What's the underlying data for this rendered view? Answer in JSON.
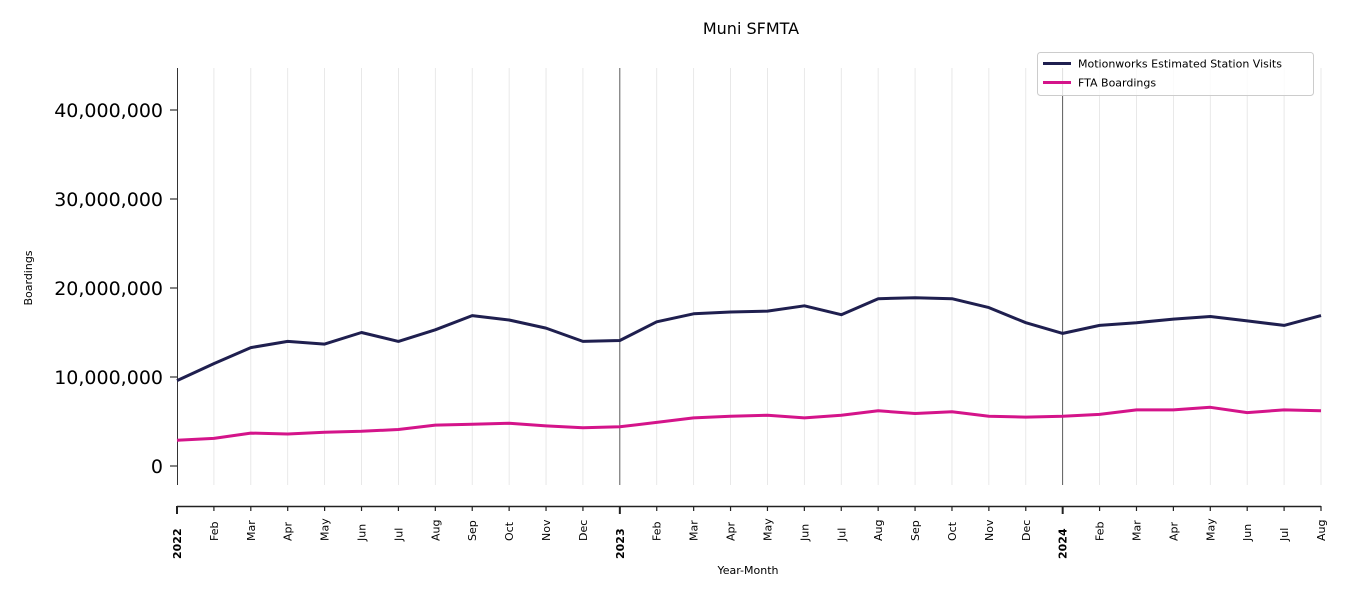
{
  "chart_data": {
    "type": "line",
    "title": "Muni SFMTA",
    "xlabel": "Year-Month",
    "ylabel": "Boardings",
    "ylim": [
      -2000000,
      44700000
    ],
    "yticks": [
      0,
      10000000,
      20000000,
      30000000,
      40000000
    ],
    "ytick_labels": [
      "0",
      "10,000,000",
      "20,000,000",
      "30,000,000",
      "40,000,000"
    ],
    "grid": "vertical",
    "legend_position": "top-right",
    "x": [
      "2022-01",
      "2022-02",
      "2022-03",
      "2022-04",
      "2022-05",
      "2022-06",
      "2022-07",
      "2022-08",
      "2022-09",
      "2022-10",
      "2022-11",
      "2022-12",
      "2023-01",
      "2023-02",
      "2023-03",
      "2023-04",
      "2023-05",
      "2023-06",
      "2023-07",
      "2023-08",
      "2023-09",
      "2023-10",
      "2023-11",
      "2023-12",
      "2024-01",
      "2024-02",
      "2024-03",
      "2024-04",
      "2024-05",
      "2024-06",
      "2024-07",
      "2024-08"
    ],
    "xtick_labels": [
      "2022",
      "Feb",
      "Mar",
      "Apr",
      "May",
      "Jun",
      "Jul",
      "Aug",
      "Sep",
      "Oct",
      "Nov",
      "Dec",
      "2023",
      "Feb",
      "Mar",
      "Apr",
      "May",
      "Jun",
      "Jul",
      "Aug",
      "Sep",
      "Oct",
      "Nov",
      "Dec",
      "2024",
      "Feb",
      "Mar",
      "Apr",
      "May",
      "Jun",
      "Jul",
      "Aug"
    ],
    "year_boundaries": [
      "2023-01",
      "2024-01"
    ],
    "series": [
      {
        "name": "Motionworks Estimated Station Visits",
        "color": "#1f1f4f",
        "values": [
          9600000,
          11500000,
          13300000,
          14000000,
          13700000,
          15000000,
          14000000,
          15300000,
          16900000,
          16400000,
          15500000,
          14000000,
          14100000,
          16200000,
          17100000,
          17300000,
          17400000,
          18000000,
          17000000,
          18800000,
          18900000,
          18800000,
          17800000,
          16100000,
          14900000,
          15800000,
          16100000,
          16500000,
          16800000,
          16300000,
          15800000,
          16900000
        ]
      },
      {
        "name": "FTA Boardings",
        "color": "#d4148a",
        "values": [
          2900000,
          3100000,
          3700000,
          3600000,
          3800000,
          3900000,
          4100000,
          4600000,
          4700000,
          4800000,
          4500000,
          4300000,
          4400000,
          4900000,
          5400000,
          5600000,
          5700000,
          5400000,
          5700000,
          6200000,
          5900000,
          6100000,
          5600000,
          5500000,
          5600000,
          5800000,
          6300000,
          6300000,
          6600000,
          6000000,
          6300000,
          6200000
        ]
      }
    ]
  }
}
